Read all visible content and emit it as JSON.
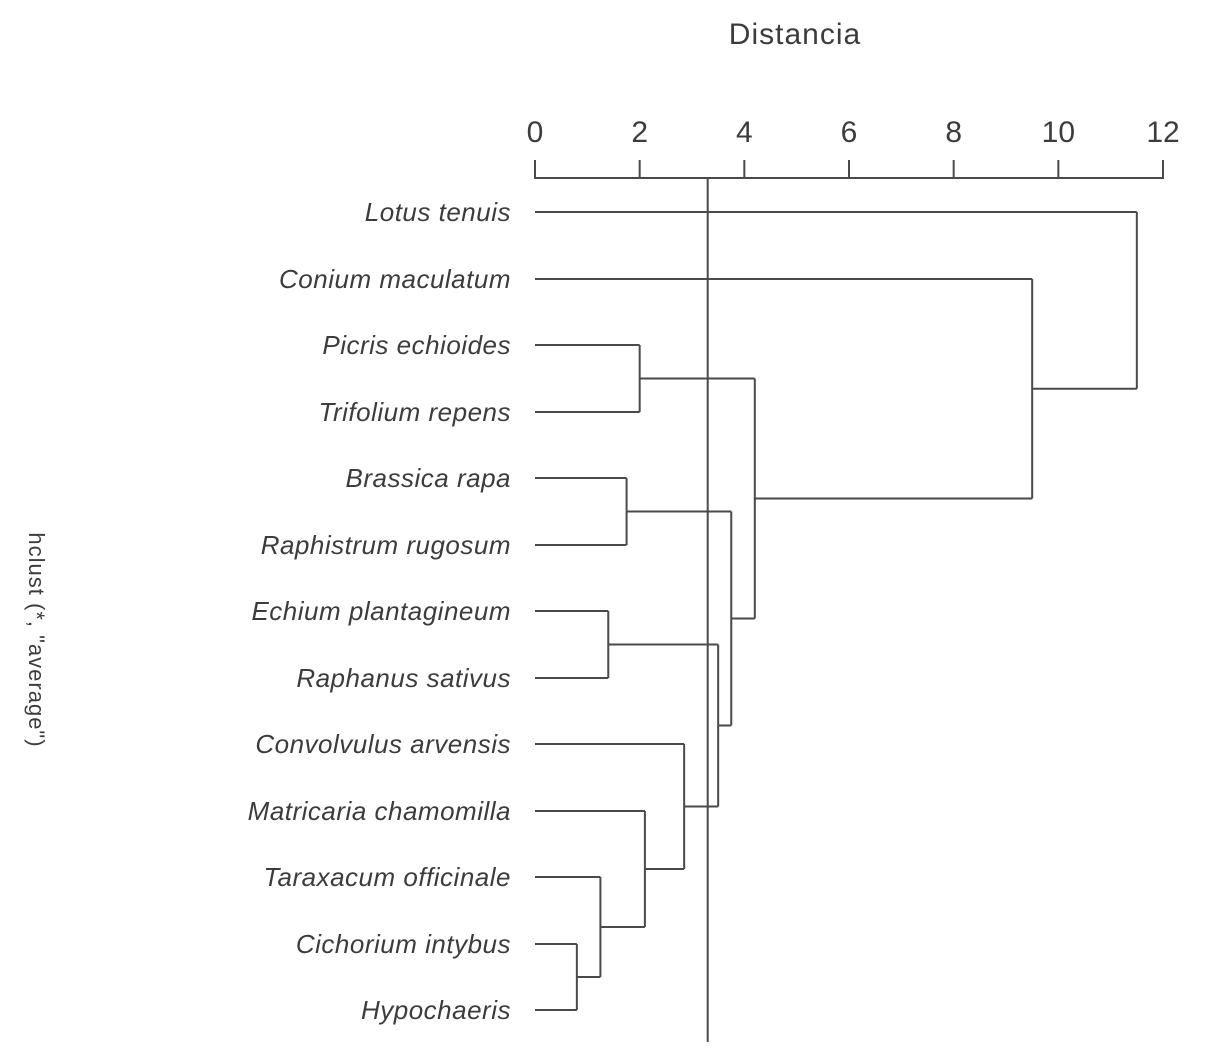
{
  "chart_data": {
    "type": "dendrogram",
    "title": "Distancia",
    "side_label": "hclust (*, \"average\")",
    "orientation": "horizontal-root-right",
    "axis": {
      "label": "Distancia",
      "position": "top",
      "min": 0,
      "max": 12,
      "ticks": [
        0,
        2,
        4,
        6,
        8,
        10,
        12
      ]
    },
    "cut_line_distance": 3.3,
    "leaves_top_to_bottom": [
      "Lotus tenuis",
      "Conium maculatum",
      "Picris echioides",
      "Trifolium repens",
      "Brassica rapa",
      "Raphistrum rugosum",
      "Echium plantagineum",
      "Raphanus sativus",
      "Convolvulus arvensis",
      "Matricaria chamomilla",
      "Taraxacum officinale",
      "Cichorium intybus",
      "Hypochaeris"
    ],
    "tree": {
      "height": 11.5,
      "children": [
        {
          "leaf": "Lotus tenuis"
        },
        {
          "height": 9.5,
          "children": [
            {
              "leaf": "Conium maculatum"
            },
            {
              "height": 4.2,
              "children": [
                {
                  "height": 2.0,
                  "children": [
                    {
                      "leaf": "Picris echioides"
                    },
                    {
                      "leaf": "Trifolium repens"
                    }
                  ]
                },
                {
                  "height": 3.75,
                  "children": [
                    {
                      "height": 1.75,
                      "children": [
                        {
                          "leaf": "Brassica rapa"
                        },
                        {
                          "leaf": "Raphistrum rugosum"
                        }
                      ]
                    },
                    {
                      "height": 3.5,
                      "children": [
                        {
                          "height": 1.4,
                          "children": [
                            {
                              "leaf": "Echium plantagineum"
                            },
                            {
                              "leaf": "Raphanus sativus"
                            }
                          ]
                        },
                        {
                          "height": 2.85,
                          "children": [
                            {
                              "leaf": "Convolvulus arvensis"
                            },
                            {
                              "height": 2.1,
                              "children": [
                                {
                                  "leaf": "Matricaria chamomilla"
                                },
                                {
                                  "height": 1.25,
                                  "children": [
                                    {
                                      "leaf": "Taraxacum officinale"
                                    },
                                    {
                                      "height": 0.8,
                                      "children": [
                                        {
                                          "leaf": "Cichorium intybus"
                                        },
                                        {
                                          "leaf": "Hypochaeris"
                                        }
                                      ]
                                    }
                                  ]
                                }
                              ]
                            }
                          ]
                        }
                      ]
                    }
                  ]
                }
              ]
            }
          ]
        }
      ]
    },
    "colors": {
      "line": "#4a4a4a",
      "text": "#3c3c3c",
      "background": "#ffffff"
    }
  }
}
